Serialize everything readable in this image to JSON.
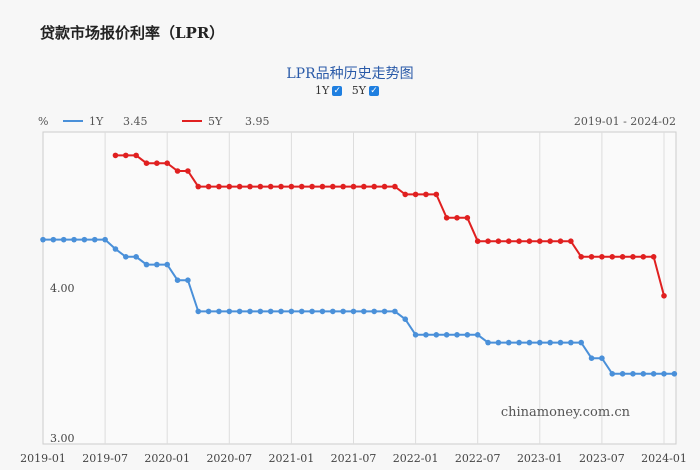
{
  "page_title": "贷款市场报价利率（LPR）",
  "toggles": [
    {
      "label": "1Y",
      "checked": true
    },
    {
      "label": "5Y",
      "checked": true
    }
  ],
  "watermark": "chinamoney.com.cn",
  "chart_data": {
    "type": "line",
    "title": "LPR品种历史走势图",
    "ylabel": "%",
    "date_range": "2019-01 - 2024-02",
    "ylim": [
      3.0,
      5.0
    ],
    "y_ticks": [
      "4.00",
      "3.00"
    ],
    "x_ticks": [
      "2019-01",
      "2019-07",
      "2020-01",
      "2020-07",
      "2021-01",
      "2021-07",
      "2022-01",
      "2022-07",
      "2023-01",
      "2023-07",
      "2024-01"
    ],
    "grid": "vertical",
    "legend_position": "top-left",
    "x_start": "2019-01",
    "series": [
      {
        "name": "1Y",
        "latest": "3.45",
        "color": "#4a90d9",
        "start": "2019-01",
        "values": [
          4.31,
          4.31,
          4.31,
          4.31,
          4.31,
          4.31,
          4.31,
          4.25,
          4.2,
          4.2,
          4.15,
          4.15,
          4.15,
          4.05,
          4.05,
          3.85,
          3.85,
          3.85,
          3.85,
          3.85,
          3.85,
          3.85,
          3.85,
          3.85,
          3.85,
          3.85,
          3.85,
          3.85,
          3.85,
          3.85,
          3.85,
          3.85,
          3.85,
          3.85,
          3.85,
          3.8,
          3.7,
          3.7,
          3.7,
          3.7,
          3.7,
          3.7,
          3.7,
          3.65,
          3.65,
          3.65,
          3.65,
          3.65,
          3.65,
          3.65,
          3.65,
          3.65,
          3.65,
          3.55,
          3.55,
          3.45,
          3.45,
          3.45,
          3.45,
          3.45,
          3.45,
          3.45
        ]
      },
      {
        "name": "5Y",
        "latest": "3.95",
        "color": "#e02020",
        "start": "2019-08",
        "values": [
          4.85,
          4.85,
          4.85,
          4.8,
          4.8,
          4.8,
          4.75,
          4.75,
          4.65,
          4.65,
          4.65,
          4.65,
          4.65,
          4.65,
          4.65,
          4.65,
          4.65,
          4.65,
          4.65,
          4.65,
          4.65,
          4.65,
          4.65,
          4.65,
          4.65,
          4.65,
          4.65,
          4.65,
          4.6,
          4.6,
          4.6,
          4.6,
          4.45,
          4.45,
          4.45,
          4.3,
          4.3,
          4.3,
          4.3,
          4.3,
          4.3,
          4.3,
          4.3,
          4.3,
          4.3,
          4.2,
          4.2,
          4.2,
          4.2,
          4.2,
          4.2,
          4.2,
          4.2,
          3.95
        ]
      }
    ]
  }
}
